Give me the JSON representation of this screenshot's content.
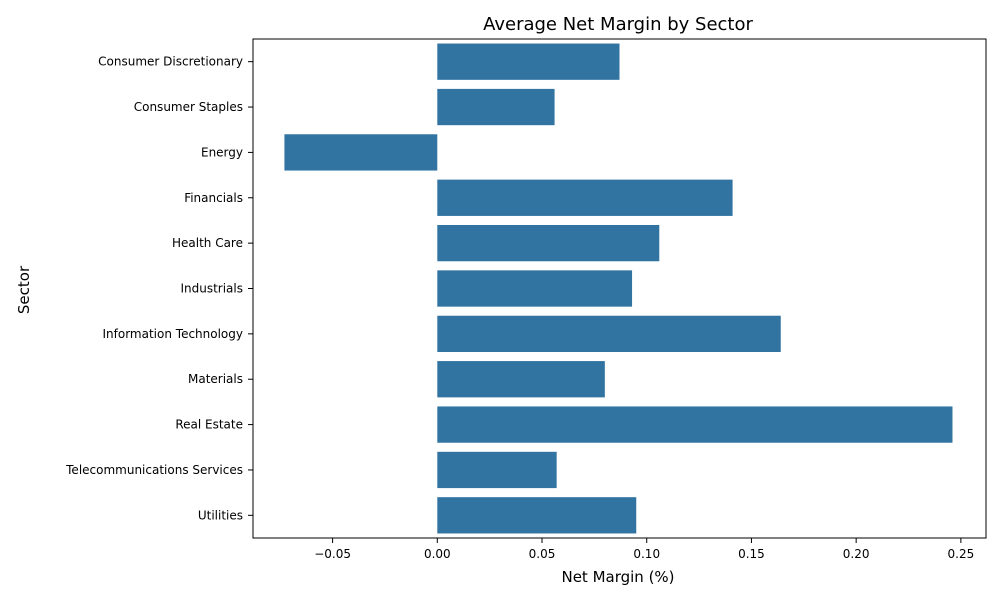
{
  "chart_data": {
    "type": "bar",
    "orientation": "horizontal",
    "title": "Average Net Margin by Sector",
    "xlabel": "Net Margin (%)",
    "ylabel": "Sector",
    "categories": [
      "Consumer Discretionary",
      "Consumer Staples",
      "Energy",
      "Financials",
      "Health Care",
      "Industrials",
      "Information Technology",
      "Materials",
      "Real Estate",
      "Telecommunications Services",
      "Utilities"
    ],
    "values": [
      0.087,
      0.056,
      -0.073,
      0.141,
      0.106,
      0.093,
      0.164,
      0.08,
      0.246,
      0.057,
      0.095
    ],
    "xlim": [
      -0.088,
      0.262
    ],
    "xticks": [
      -0.05,
      0.0,
      0.05,
      0.1,
      0.15,
      0.2,
      0.25
    ],
    "xtick_labels": [
      "−0.05",
      "0.00",
      "0.05",
      "0.10",
      "0.15",
      "0.20",
      "0.25"
    ],
    "grid": false,
    "bar_color": "#3274a1"
  }
}
